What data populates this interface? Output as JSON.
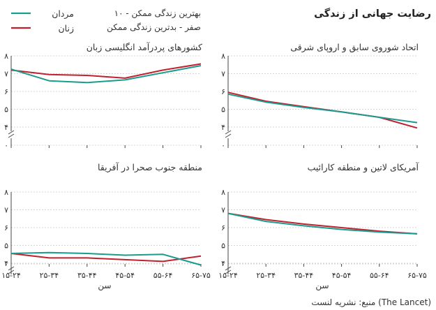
{
  "title": "رضایت جهانی از زندگی",
  "source": "منبع: نشریه لنست (The Lancet)",
  "legend": {
    "men": "مردان",
    "women": "زنان",
    "scale_best": "۱۰ - بهترین زندگی ممکن",
    "scale_worst": "صفر - بدترین زندگی ممکن"
  },
  "colors": {
    "men": "#1a9b8f",
    "women": "#c0212e"
  },
  "chart_data": {
    "type": "line",
    "title": "رضایت جهانی از زندگی",
    "xlabel": "سن",
    "categories": [
      "۱۵-۲۴",
      "۲۵-۳۴",
      "۳۵-۴۴",
      "۴۵-۵۴",
      "۵۵-۶۴",
      "۶۵-۷۵"
    ],
    "y_ticks": [
      {
        "value": 8,
        "label": "۸"
      },
      {
        "value": 7,
        "label": "۷"
      },
      {
        "value": 6,
        "label": "۶"
      },
      {
        "value": 5,
        "label": "۵"
      },
      {
        "value": 4,
        "label": "۴"
      },
      {
        "value": 0,
        "label": "۰"
      }
    ],
    "ylim": [
      0,
      8
    ],
    "axis_break": true,
    "panels": [
      {
        "title": "اتحاد شوروی سابق و اروپای شرقی",
        "series": [
          {
            "name": "مردان",
            "values": [
              5.85,
              5.4,
              5.1,
              4.85,
              4.55,
              4.25
            ]
          },
          {
            "name": "زنان",
            "values": [
              5.95,
              5.45,
              5.15,
              4.85,
              4.55,
              3.95
            ]
          }
        ]
      },
      {
        "title": "کشورهای پردرآمد انگلیسی زبان",
        "series": [
          {
            "name": "مردان",
            "values": [
              7.25,
              6.6,
              6.5,
              6.65,
              7.05,
              7.45
            ]
          },
          {
            "name": "زنان",
            "values": [
              7.2,
              6.95,
              6.9,
              6.75,
              7.2,
              7.55
            ]
          }
        ]
      },
      {
        "title": "آمریکای لاتین و منطقه کارائیب",
        "series": [
          {
            "name": "مردان",
            "values": [
              6.8,
              6.35,
              6.1,
              5.9,
              5.75,
              5.65
            ]
          },
          {
            "name": "زنان",
            "values": [
              6.8,
              6.45,
              6.2,
              6.0,
              5.8,
              5.65
            ]
          }
        ]
      },
      {
        "title": "منطقه جنوب صحرا در آفریقا",
        "series": [
          {
            "name": "مردان",
            "values": [
              4.55,
              4.6,
              4.55,
              4.45,
              4.5,
              3.9
            ]
          },
          {
            "name": "زنان",
            "values": [
              4.55,
              4.3,
              4.3,
              4.2,
              4.1,
              4.4
            ]
          }
        ]
      }
    ]
  }
}
